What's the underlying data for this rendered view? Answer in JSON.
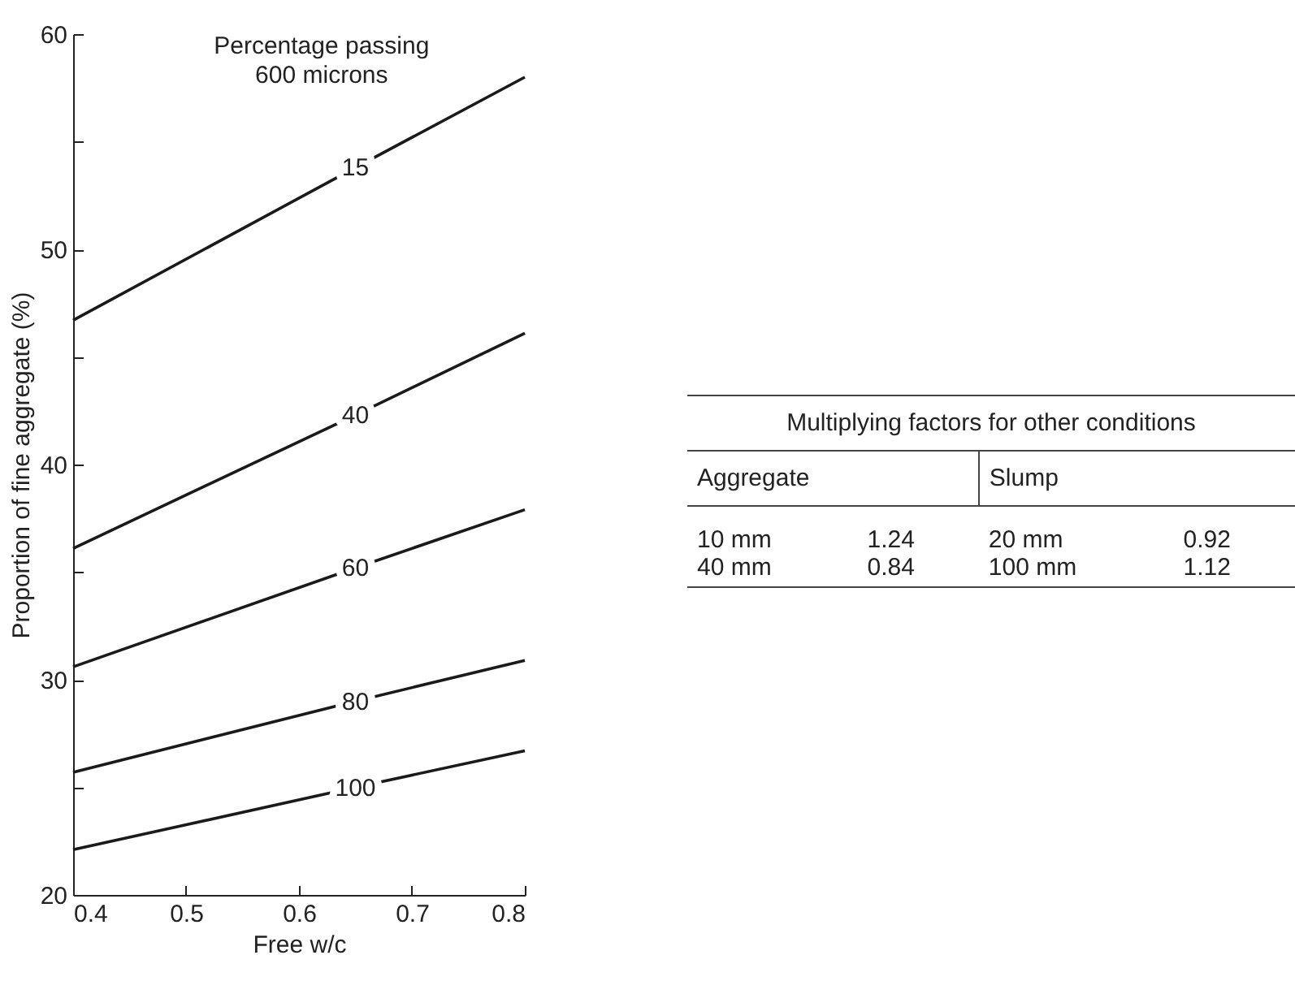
{
  "chart_data": [
    {
      "type": "line",
      "xlabel": "Free w/c",
      "ylabel": "Proportion of fine aggregate (%)",
      "legend_title": "Percentage passing\n600 microns",
      "x": [
        0.4,
        0.65,
        0.8
      ],
      "series": [
        {
          "name": "15",
          "color": "#1a1a1a",
          "values": [
            46.7,
            53.8,
            58
          ]
        },
        {
          "name": "40",
          "color": "#1a1a1a",
          "values": [
            36.1,
            42.3,
            46.1
          ]
        },
        {
          "name": "60",
          "color": "#1a1a1a",
          "values": [
            30.6,
            35.2,
            37.9
          ]
        },
        {
          "name": "80",
          "color": "#1a1a1a",
          "values": [
            25.7,
            29.0,
            30.9
          ]
        },
        {
          "name": "100",
          "color": "#1a1a1a",
          "values": [
            22.1,
            25.0,
            26.7
          ]
        }
      ],
      "xlim": [
        0.4,
        0.8
      ],
      "xticks": [
        0.4,
        0.5,
        0.6,
        0.7,
        0.8
      ],
      "ylim": [
        20,
        60
      ],
      "yticks": [
        20,
        {
          "value": 25,
          "label": null
        },
        30,
        {
          "value": 35,
          "label": null
        },
        40,
        {
          "value": 45,
          "label": null
        },
        50,
        {
          "value": 55,
          "label": null
        },
        60
      ],
      "grid": false,
      "legend": false
    },
    {
      "type": "other",
      "title": "Multiplying factors for other conditions",
      "annotations": [
        "Aggregate",
        "Slump",
        "10 mm",
        "1.24",
        "20 mm",
        "0.92",
        "40 mm",
        "0.84",
        "100 mm",
        "1.12"
      ]
    }
  ]
}
